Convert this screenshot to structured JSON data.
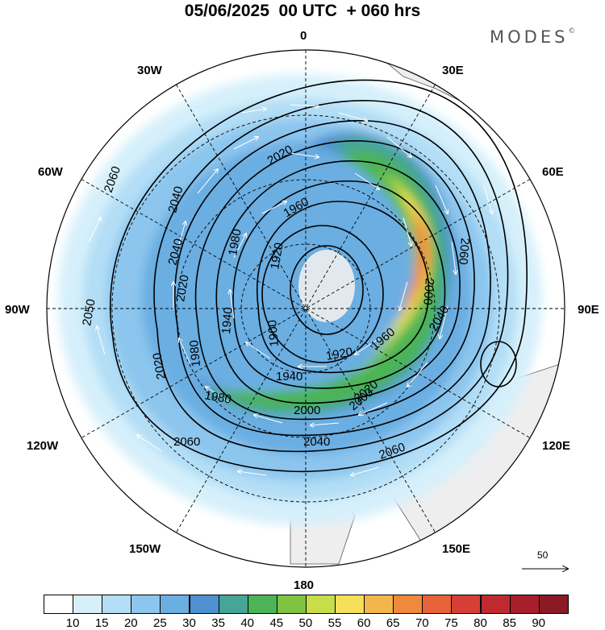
{
  "title": "05/06/2025  00 UTC  + 060 hrs",
  "brand": "MODES",
  "brand_mark": "©",
  "longitude_labels": {
    "lon_0": "0",
    "lon_30e": "30E",
    "lon_60e": "60E",
    "lon_90e": "90E",
    "lon_120e": "120E",
    "lon_150e": "150E",
    "lon_180": "180",
    "lon_150w": "150W",
    "lon_120w": "120W",
    "lon_90w": "90W",
    "lon_60w": "60W",
    "lon_30w": "30W"
  },
  "contour_labels": [
    "2060",
    "2040",
    "2040",
    "2020",
    "1980",
    "1960",
    "1920",
    "2020",
    "2000",
    "2060",
    "2050",
    "2020",
    "1940",
    "1980",
    "1900",
    "1920",
    "1960",
    "2040",
    "2000",
    "1980",
    "1940",
    "2020",
    "2000",
    "2040",
    "2060",
    "2060"
  ],
  "reference_vector": "50",
  "colorbar": {
    "ticks": [
      "10",
      "15",
      "20",
      "25",
      "30",
      "35",
      "40",
      "45",
      "50",
      "55",
      "60",
      "65",
      "70",
      "75",
      "80",
      "85",
      "90"
    ],
    "colors": [
      "#ffffff",
      "#d6f0fb",
      "#b3def6",
      "#8cc6ee",
      "#6aaee2",
      "#4f90d0",
      "#46a596",
      "#4cb457",
      "#80c341",
      "#c7dd4a",
      "#f6e05a",
      "#f3b64b",
      "#ef8a3c",
      "#e8623a",
      "#d63e36",
      "#bf2a30",
      "#a61f2a",
      "#8b1a24"
    ]
  },
  "colors": {
    "land": "#eeeeee",
    "coast": "#555555",
    "contour": "#000000"
  }
}
